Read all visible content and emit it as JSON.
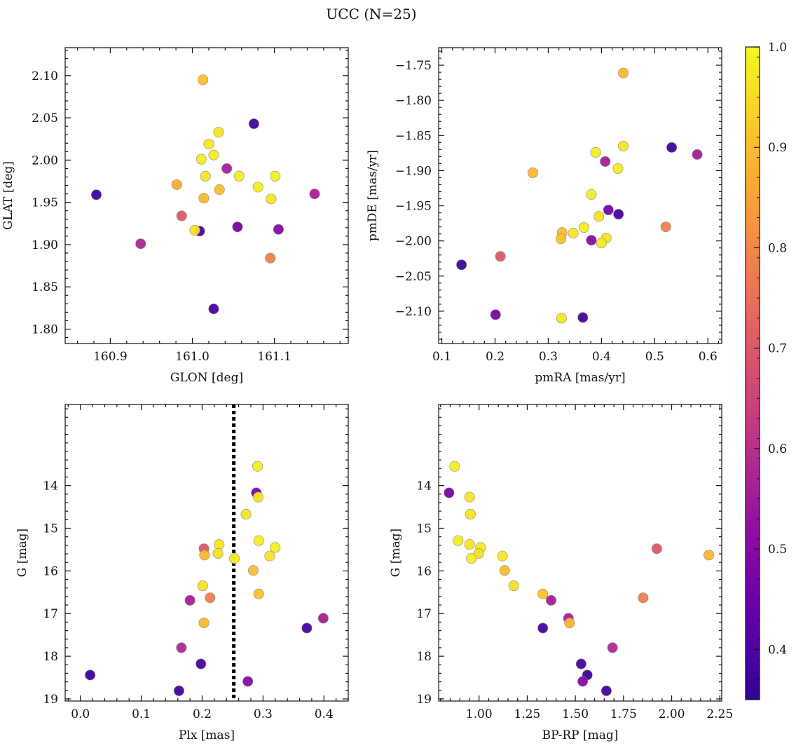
{
  "title": "UCC (N=25)",
  "colorbar": {
    "range": [
      0.35,
      1.0
    ],
    "ticks": [
      "0.4",
      "0.5",
      "0.6",
      "0.7",
      "0.8",
      "0.9",
      "1.0"
    ],
    "tick_values": [
      0.4,
      0.5,
      0.6,
      0.7,
      0.8,
      0.9,
      1.0
    ],
    "colormap": "plasma"
  },
  "chart_data": [
    {
      "type": "scatter",
      "xlabel": "GLON [deg]",
      "ylabel": "GLAT [deg]",
      "xlim": [
        160.845,
        161.19
      ],
      "ylim": [
        1.783,
        2.133
      ],
      "inverted_y": false,
      "xticks": [
        160.9,
        161.0,
        161.1
      ],
      "xtick_labels": [
        "160.9",
        "161.0",
        "161.1"
      ],
      "yticks": [
        1.8,
        1.85,
        1.9,
        1.95,
        2.0,
        2.05,
        2.1
      ],
      "ytick_labels": [
        "1.80",
        "1.85",
        "1.90",
        "1.95",
        "2.00",
        "2.05",
        "2.10"
      ],
      "points": [
        {
          "x": 161.013,
          "y": 2.095,
          "c": 0.91
        },
        {
          "x": 161.075,
          "y": 2.043,
          "c": 0.38
        },
        {
          "x": 161.032,
          "y": 2.033,
          "c": 0.97
        },
        {
          "x": 161.02,
          "y": 2.019,
          "c": 0.97
        },
        {
          "x": 161.026,
          "y": 2.006,
          "c": 0.98
        },
        {
          "x": 161.011,
          "y": 2.001,
          "c": 0.98
        },
        {
          "x": 161.042,
          "y": 1.99,
          "c": 0.56
        },
        {
          "x": 161.016,
          "y": 1.981,
          "c": 0.97
        },
        {
          "x": 161.057,
          "y": 1.981,
          "c": 0.98
        },
        {
          "x": 161.101,
          "y": 1.981,
          "c": 0.99
        },
        {
          "x": 160.981,
          "y": 1.971,
          "c": 0.87
        },
        {
          "x": 161.08,
          "y": 1.968,
          "c": 0.98
        },
        {
          "x": 161.033,
          "y": 1.965,
          "c": 0.9
        },
        {
          "x": 160.883,
          "y": 1.959,
          "c": 0.37
        },
        {
          "x": 161.149,
          "y": 1.96,
          "c": 0.56
        },
        {
          "x": 161.014,
          "y": 1.955,
          "c": 0.89
        },
        {
          "x": 161.096,
          "y": 1.954,
          "c": 0.97
        },
        {
          "x": 160.987,
          "y": 1.934,
          "c": 0.7
        },
        {
          "x": 161.055,
          "y": 1.921,
          "c": 0.47
        },
        {
          "x": 161.105,
          "y": 1.918,
          "c": 0.5
        },
        {
          "x": 161.009,
          "y": 1.916,
          "c": 0.39
        },
        {
          "x": 161.003,
          "y": 1.917,
          "c": 0.96
        },
        {
          "x": 160.937,
          "y": 1.901,
          "c": 0.58
        },
        {
          "x": 161.095,
          "y": 1.884,
          "c": 0.78
        },
        {
          "x": 161.026,
          "y": 1.824,
          "c": 0.39
        }
      ]
    },
    {
      "type": "scatter",
      "xlabel": "pmRA [mas/yr]",
      "ylabel": "pmDE [mas/yr]",
      "xlim": [
        0.094,
        0.626
      ],
      "ylim": [
        -2.146,
        -1.725
      ],
      "inverted_y": false,
      "xticks": [
        0.1,
        0.2,
        0.3,
        0.4,
        0.5,
        0.6
      ],
      "xtick_labels": [
        "0.1",
        "0.2",
        "0.3",
        "0.4",
        "0.5",
        "0.6"
      ],
      "yticks": [
        -2.1,
        -2.05,
        -2.0,
        -1.95,
        -1.9,
        -1.85,
        -1.8,
        -1.75
      ],
      "ytick_labels": [
        "−2.10",
        "−2.05",
        "−2.00",
        "−1.95",
        "−1.90",
        "−1.85",
        "−1.80",
        "−1.75"
      ],
      "points": [
        {
          "x": 0.441,
          "y": -1.761,
          "c": 0.89
        },
        {
          "x": 0.532,
          "y": -1.867,
          "c": 0.38
        },
        {
          "x": 0.58,
          "y": -1.877,
          "c": 0.56
        },
        {
          "x": 0.441,
          "y": -1.865,
          "c": 0.97
        },
        {
          "x": 0.389,
          "y": -1.874,
          "c": 0.98
        },
        {
          "x": 0.407,
          "y": -1.887,
          "c": 0.56
        },
        {
          "x": 0.431,
          "y": -1.897,
          "c": 0.98
        },
        {
          "x": 0.271,
          "y": -1.903,
          "c": 0.89
        },
        {
          "x": 0.381,
          "y": -1.934,
          "c": 0.98
        },
        {
          "x": 0.413,
          "y": -1.956,
          "c": 0.47
        },
        {
          "x": 0.432,
          "y": -1.962,
          "c": 0.39
        },
        {
          "x": 0.395,
          "y": -1.965,
          "c": 0.96
        },
        {
          "x": 0.521,
          "y": -1.98,
          "c": 0.78
        },
        {
          "x": 0.367,
          "y": -1.981,
          "c": 0.98
        },
        {
          "x": 0.326,
          "y": -1.988,
          "c": 0.9
        },
        {
          "x": 0.347,
          "y": -1.989,
          "c": 0.97
        },
        {
          "x": 0.409,
          "y": -1.996,
          "c": 0.97
        },
        {
          "x": 0.324,
          "y": -1.997,
          "c": 0.91
        },
        {
          "x": 0.381,
          "y": -1.999,
          "c": 0.5
        },
        {
          "x": 0.4,
          "y": -2.003,
          "c": 0.98
        },
        {
          "x": 0.21,
          "y": -2.022,
          "c": 0.7
        },
        {
          "x": 0.137,
          "y": -2.034,
          "c": 0.37
        },
        {
          "x": 0.201,
          "y": -2.105,
          "c": 0.47
        },
        {
          "x": 0.325,
          "y": -2.11,
          "c": 0.97
        },
        {
          "x": 0.365,
          "y": -2.109,
          "c": 0.39
        }
      ]
    },
    {
      "type": "scatter",
      "xlabel": "Plx [mas]",
      "ylabel": "G [mag]",
      "xlim": [
        -0.025,
        0.44
      ],
      "ylim": [
        12.1,
        19.05
      ],
      "inverted_y": true,
      "xticks": [
        0.0,
        0.1,
        0.2,
        0.3,
        0.4
      ],
      "xtick_labels": [
        "0.0",
        "0.1",
        "0.2",
        "0.3",
        "0.4"
      ],
      "yticks": [
        14,
        15,
        16,
        17,
        18,
        19
      ],
      "ytick_labels": [
        "14",
        "15",
        "16",
        "17",
        "18",
        "19"
      ],
      "vline": 0.252,
      "points": [
        {
          "x": 0.291,
          "y": 13.55,
          "c": 0.98
        },
        {
          "x": 0.289,
          "y": 14.17,
          "c": 0.47
        },
        {
          "x": 0.292,
          "y": 14.27,
          "c": 0.97
        },
        {
          "x": 0.272,
          "y": 14.67,
          "c": 0.97
        },
        {
          "x": 0.293,
          "y": 15.29,
          "c": 0.98
        },
        {
          "x": 0.228,
          "y": 15.38,
          "c": 0.97
        },
        {
          "x": 0.32,
          "y": 15.45,
          "c": 0.98
        },
        {
          "x": 0.203,
          "y": 15.48,
          "c": 0.7
        },
        {
          "x": 0.226,
          "y": 15.59,
          "c": 0.96
        },
        {
          "x": 0.204,
          "y": 15.63,
          "c": 0.89
        },
        {
          "x": 0.311,
          "y": 15.65,
          "c": 0.97
        },
        {
          "x": 0.253,
          "y": 15.71,
          "c": 0.98
        },
        {
          "x": 0.284,
          "y": 15.99,
          "c": 0.9
        },
        {
          "x": 0.201,
          "y": 16.35,
          "c": 0.96
        },
        {
          "x": 0.293,
          "y": 16.54,
          "c": 0.91
        },
        {
          "x": 0.213,
          "y": 16.63,
          "c": 0.78
        },
        {
          "x": 0.18,
          "y": 16.69,
          "c": 0.56
        },
        {
          "x": 0.399,
          "y": 17.11,
          "c": 0.56
        },
        {
          "x": 0.203,
          "y": 17.22,
          "c": 0.89
        },
        {
          "x": 0.372,
          "y": 17.34,
          "c": 0.39
        },
        {
          "x": 0.166,
          "y": 17.8,
          "c": 0.58
        },
        {
          "x": 0.198,
          "y": 18.18,
          "c": 0.39
        },
        {
          "x": 0.016,
          "y": 18.44,
          "c": 0.37
        },
        {
          "x": 0.275,
          "y": 18.59,
          "c": 0.5
        },
        {
          "x": 0.162,
          "y": 18.81,
          "c": 0.38
        }
      ]
    },
    {
      "type": "scatter",
      "xlabel": "BP-RP [mag]",
      "ylabel": "G [mag]",
      "xlim": [
        0.79,
        2.26
      ],
      "ylim": [
        12.1,
        19.05
      ],
      "inverted_y": true,
      "xticks": [
        1.0,
        1.25,
        1.5,
        1.75,
        2.0,
        2.25
      ],
      "xtick_labels": [
        "1.00",
        "1.25",
        "1.50",
        "1.75",
        "2.00",
        "2.25"
      ],
      "yticks": [
        14,
        15,
        16,
        17,
        18,
        19
      ],
      "ytick_labels": [
        "14",
        "15",
        "16",
        "17",
        "18",
        "19"
      ],
      "points": [
        {
          "x": 0.873,
          "y": 13.55,
          "c": 0.98
        },
        {
          "x": 0.844,
          "y": 14.17,
          "c": 0.47
        },
        {
          "x": 0.951,
          "y": 14.27,
          "c": 0.97
        },
        {
          "x": 0.955,
          "y": 14.67,
          "c": 0.97
        },
        {
          "x": 0.891,
          "y": 15.29,
          "c": 0.98
        },
        {
          "x": 0.951,
          "y": 15.38,
          "c": 0.97
        },
        {
          "x": 1.008,
          "y": 15.45,
          "c": 0.98
        },
        {
          "x": 1.923,
          "y": 15.48,
          "c": 0.7
        },
        {
          "x": 0.998,
          "y": 15.59,
          "c": 0.96
        },
        {
          "x": 2.193,
          "y": 15.63,
          "c": 0.89
        },
        {
          "x": 1.121,
          "y": 15.65,
          "c": 0.97
        },
        {
          "x": 0.96,
          "y": 15.71,
          "c": 0.98
        },
        {
          "x": 1.133,
          "y": 15.99,
          "c": 0.9
        },
        {
          "x": 1.18,
          "y": 16.35,
          "c": 0.96
        },
        {
          "x": 1.331,
          "y": 16.54,
          "c": 0.91
        },
        {
          "x": 1.852,
          "y": 16.63,
          "c": 0.78
        },
        {
          "x": 1.374,
          "y": 16.69,
          "c": 0.56
        },
        {
          "x": 1.464,
          "y": 17.11,
          "c": 0.56
        },
        {
          "x": 1.47,
          "y": 17.22,
          "c": 0.89
        },
        {
          "x": 1.331,
          "y": 17.34,
          "c": 0.39
        },
        {
          "x": 1.693,
          "y": 17.8,
          "c": 0.58
        },
        {
          "x": 1.53,
          "y": 18.18,
          "c": 0.39
        },
        {
          "x": 1.562,
          "y": 18.44,
          "c": 0.37
        },
        {
          "x": 1.538,
          "y": 18.59,
          "c": 0.5
        },
        {
          "x": 1.661,
          "y": 18.81,
          "c": 0.38
        }
      ]
    }
  ]
}
